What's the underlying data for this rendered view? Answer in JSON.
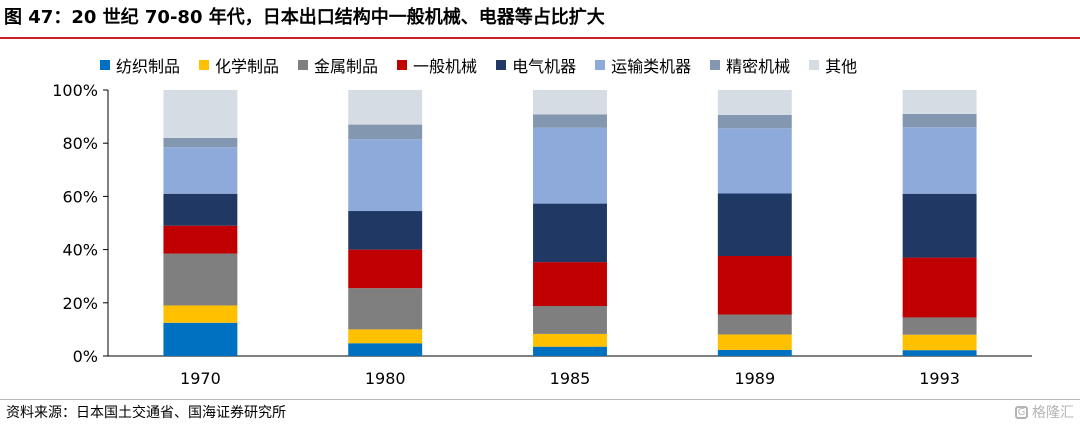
{
  "title": "图 47：20 世纪 70-80 年代，日本出口结构中一般机械、电器等占比扩大",
  "source": "资料来源：日本国土交通省、国海证券研究所",
  "watermark": {
    "text": "格隆汇",
    "logo": "G"
  },
  "chart_data": {
    "type": "bar",
    "stacked": true,
    "categories": [
      "1970",
      "1980",
      "1985",
      "1989",
      "1993"
    ],
    "ylim": [
      0,
      100
    ],
    "yticks": [
      "0%",
      "20%",
      "40%",
      "60%",
      "80%",
      "100%"
    ],
    "legend_position": "top",
    "grid": false,
    "series": [
      {
        "name": "纺织制品",
        "color": "#0070c0",
        "values": [
          12.5,
          4.8,
          3.5,
          2.3,
          2.2
        ]
      },
      {
        "name": "化学制品",
        "color": "#ffc000",
        "values": [
          6.5,
          5.2,
          4.8,
          5.8,
          5.8
        ]
      },
      {
        "name": "金属制品",
        "color": "#7f7f7f",
        "values": [
          19.5,
          15.5,
          10.5,
          7.5,
          6.5
        ]
      },
      {
        "name": "一般机械",
        "color": "#c00000",
        "values": [
          10.5,
          14.5,
          16.5,
          22.0,
          22.5
        ]
      },
      {
        "name": "电气机器",
        "color": "#1f3864",
        "values": [
          12.0,
          14.5,
          22.0,
          23.5,
          24.0
        ]
      },
      {
        "name": "运输类机器",
        "color": "#8eaadb",
        "values": [
          17.5,
          27.0,
          28.5,
          24.5,
          25.0
        ]
      },
      {
        "name": "精密机械",
        "color": "#8497b0",
        "values": [
          3.5,
          5.5,
          5.0,
          5.0,
          5.0
        ]
      },
      {
        "name": "其他",
        "color": "#d6dce4",
        "values": [
          18.0,
          13.0,
          9.2,
          9.4,
          9.0
        ]
      }
    ]
  }
}
